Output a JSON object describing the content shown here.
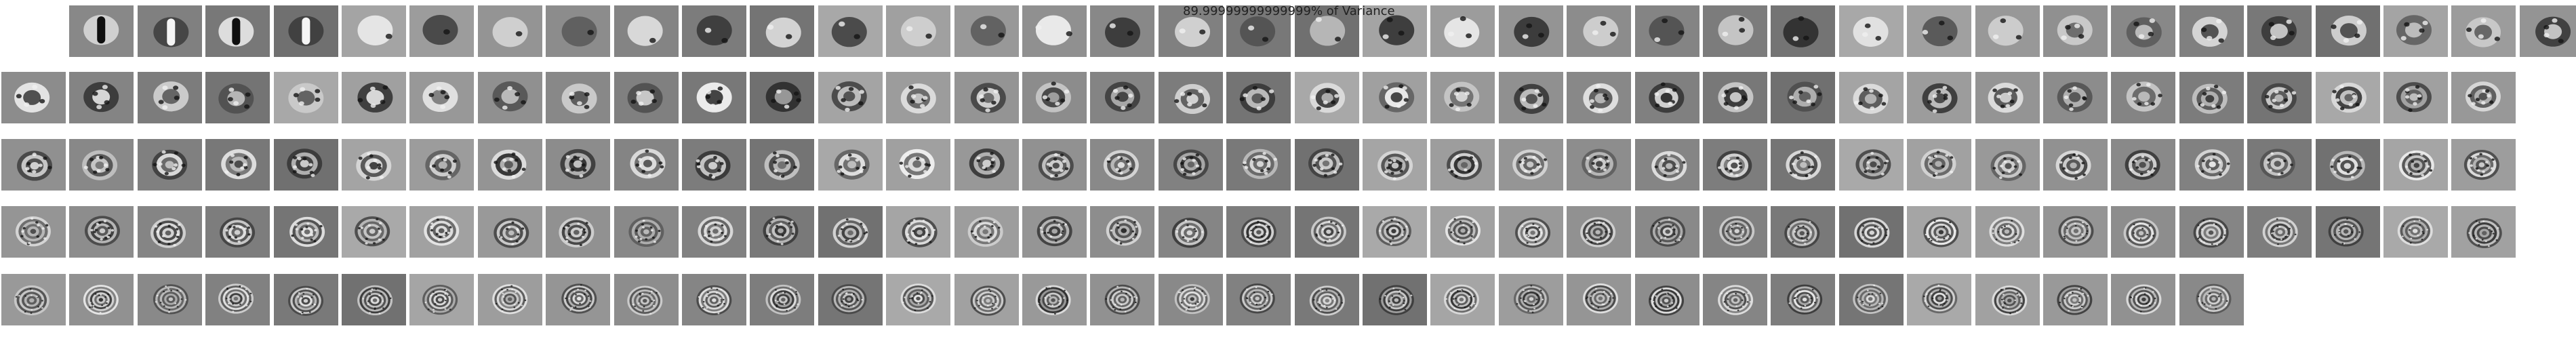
{
  "figure": {
    "title": "89.99999999999999% of Variance"
  },
  "components": {
    "row_counts": [
      37,
      37,
      37,
      37,
      33
    ],
    "skip_first_column_row_1": true
  },
  "colors": {
    "background": "#ffffff",
    "tile_gray": "#8a8a8a",
    "light": "#f2f2f2",
    "dark": "#1a1a1a"
  }
}
